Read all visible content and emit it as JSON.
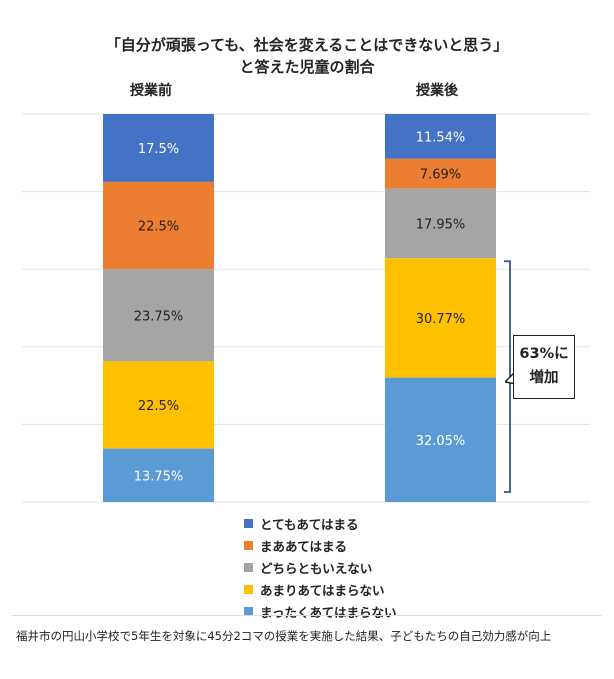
{
  "chart_data": {
    "type": "bar",
    "stacked": true,
    "title": "「自分が頑張っても、社会を変えることはできないと思う」と答えた児童の割合",
    "title_lines": [
      "「自分が頑張っても、社会を変えることはできないと思う」",
      "と答えた児童の割合"
    ],
    "categories": [
      "授業前",
      "授業後"
    ],
    "series": [
      {
        "name": "とてもあてはまる",
        "color": "#4472C4",
        "values": [
          17.5,
          11.54
        ],
        "labels": [
          "17.5%",
          "11.54%"
        ]
      },
      {
        "name": "まああてはまる",
        "color": "#ED7D31",
        "values": [
          22.5,
          7.69
        ],
        "labels": [
          "22.5%",
          "7.69%"
        ]
      },
      {
        "name": "どちらともいえない",
        "color": "#A5A5A5",
        "values": [
          23.75,
          17.95
        ],
        "labels": [
          "23.75%",
          "17.95%"
        ]
      },
      {
        "name": "あまりあてはまらない",
        "color": "#FFC000",
        "values": [
          22.5,
          30.77
        ],
        "labels": [
          "22.5%",
          "30.77%"
        ]
      },
      {
        "name": "まったくあてはまらない",
        "color": "#5B9BD5",
        "values": [
          13.75,
          32.05
        ],
        "labels": [
          "13.75%",
          "32.05%"
        ]
      }
    ],
    "ylim": [
      0,
      100
    ],
    "grid": true,
    "legend_position": "bottom",
    "annotation": {
      "lines": [
        "63%に",
        "増加"
      ],
      "bracket_color": "#2F5597"
    }
  },
  "footer": {
    "text": "福井市の円山小学校で5年生を対象に45分2コマの授業を実施した結果、子どもたちの自己効力感が向上"
  }
}
